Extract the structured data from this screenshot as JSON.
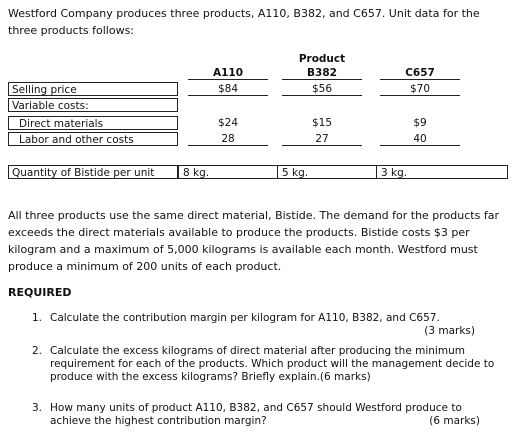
{
  "intro": "Westford Company produces three products, A110, B382, and C657. Unit data for the three products follows:",
  "table": {
    "group_header": "Product",
    "columns": [
      "A110",
      "B382",
      "C657"
    ],
    "rows": [
      {
        "label": "Selling price",
        "cells": [
          "$84",
          "$56",
          "$70"
        ]
      },
      {
        "label": "Variable costs:",
        "cells": []
      },
      {
        "label": "Direct materials",
        "cells": [
          "$24",
          "$15",
          "$9"
        ]
      },
      {
        "label": "Labor and other costs",
        "cells": [
          "28",
          "27",
          "40"
        ]
      },
      {
        "label": "Quantity of Bistide per unit",
        "cells": [
          "8 kg.",
          "5 kg.",
          "3 kg."
        ]
      }
    ]
  },
  "paragraph": "All three products use the same direct material, Bistide. The demand for the products far exceeds the direct materials available to produce the products. Bistide costs $3 per kilogram and a maximum of 5,000 kilograms is available each month. Westford must produce a minimum of 200 units of each product.",
  "required": {
    "heading": "REQUIRED",
    "items": [
      {
        "number": "1.",
        "text": "Calculate the contribution margin per kilogram for A110, B382, and C657.",
        "marks": "(3 marks)"
      },
      {
        "number": "2.",
        "text": "Calculate the excess kilograms of direct material after producing the minimum requirement for each of the products. Which product will the management decide to produce with the excess kilograms? Briefly explain.",
        "marks": "(6 marks)"
      },
      {
        "number": "3.",
        "text": "How many units of product A110, B382, and C657 should Westford produce to achieve the highest contribution margin?",
        "marks": "(6 marks)"
      }
    ]
  }
}
